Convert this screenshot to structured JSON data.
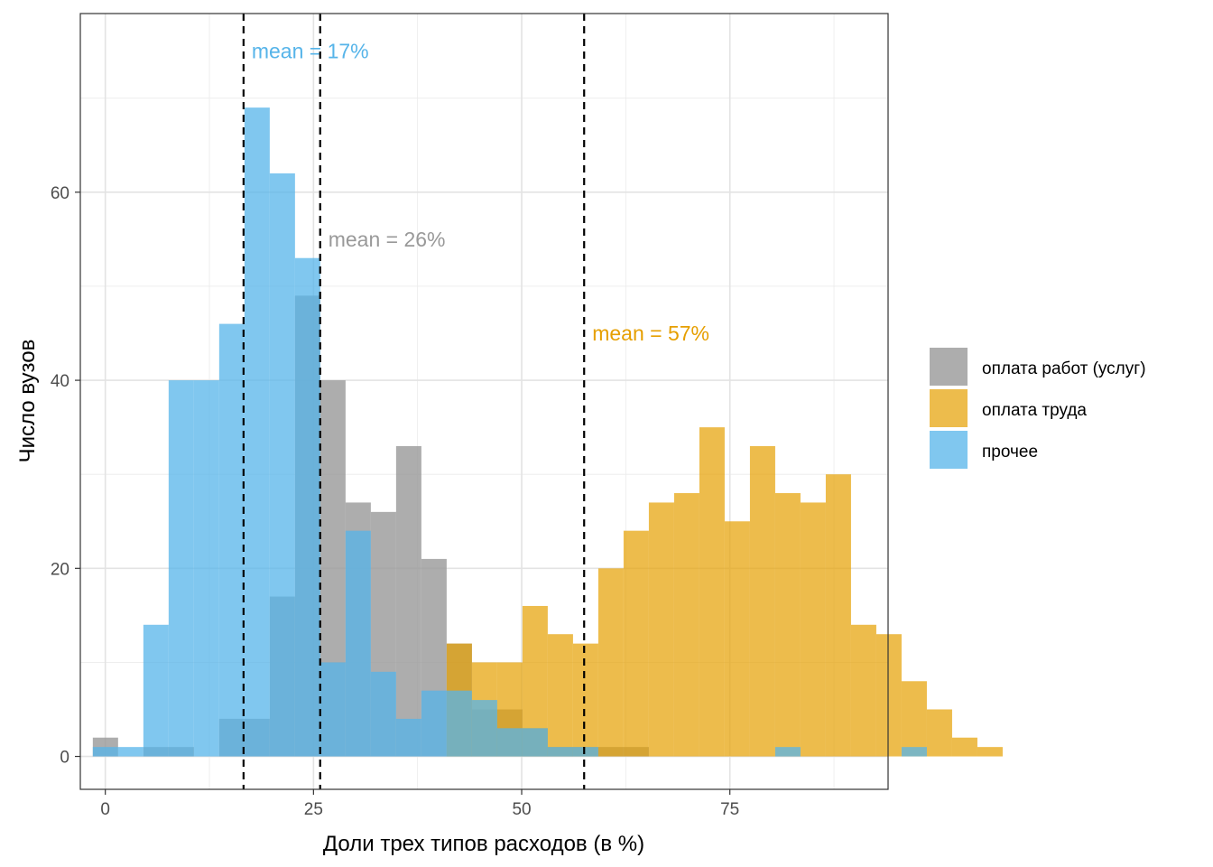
{
  "chart_data": {
    "type": "histogram",
    "xlabel": "Доли трех типов расходов (в %)",
    "ylabel": "Число вузов",
    "xlim": [
      -3,
      94
    ],
    "ylim": [
      -3.5,
      79
    ],
    "bin_width": 3.035,
    "bin_start": -1.5,
    "x_ticks": [
      0,
      25,
      50,
      75
    ],
    "x_tick_labels": [
      "0",
      "25",
      "50",
      "75"
    ],
    "y_ticks": [
      0,
      20,
      40,
      60
    ],
    "y_tick_labels": [
      "0",
      "20",
      "40",
      "60"
    ],
    "grid": true,
    "legend_position": "right",
    "series": [
      {
        "name": "оплата работ (услуг)",
        "color": "#999999",
        "counts": [
          2,
          0,
          1,
          1,
          0,
          4,
          4,
          17,
          49,
          40,
          27,
          26,
          33,
          21,
          12,
          5,
          5,
          3,
          1,
          1,
          1,
          1,
          0,
          0,
          0,
          0,
          0,
          0,
          0,
          0
        ]
      },
      {
        "name": "оплата труда",
        "color": "#E69F00",
        "counts": [
          0,
          0,
          0,
          0,
          0,
          0,
          0,
          0,
          0,
          0,
          0,
          0,
          0,
          0,
          12,
          10,
          10,
          16,
          13,
          12,
          20,
          24,
          27,
          28,
          35,
          25,
          33,
          28,
          27,
          30,
          14,
          13,
          8,
          5,
          2,
          1
        ]
      },
      {
        "name": "прочее",
        "color": "#56B4E9",
        "counts": [
          1,
          1,
          14,
          40,
          40,
          46,
          69,
          62,
          53,
          10,
          24,
          9,
          4,
          7,
          7,
          6,
          3,
          3,
          1,
          1,
          0,
          0,
          0,
          0,
          0,
          0,
          0,
          1,
          0,
          0,
          0,
          0,
          1,
          0,
          0,
          0
        ]
      }
    ],
    "mean_lines": [
      {
        "x": 16.6,
        "label": "mean = 17%",
        "label_y": 75,
        "color": "#56B4E9"
      },
      {
        "x": 25.8,
        "label": "mean = 26%",
        "label_y": 55,
        "color": "#999999"
      },
      {
        "x": 57.5,
        "label": "mean = 57%",
        "label_y": 45,
        "color": "#E69F00"
      }
    ]
  }
}
